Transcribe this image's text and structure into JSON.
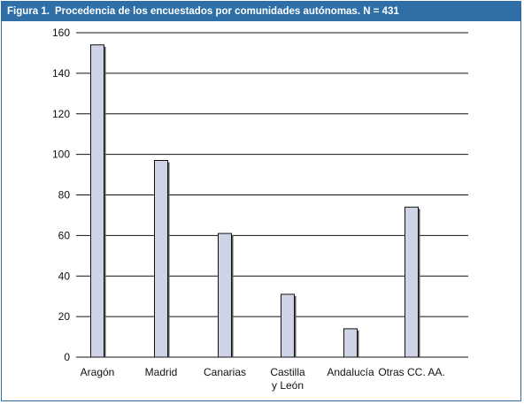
{
  "figure": {
    "label": "Figura 1.",
    "title": "Procedencia de los encuestados por comunidades autónomas. N = 431"
  },
  "colors": {
    "header_bg": "#2e6fa8",
    "bar_fill": "#cfd3e6",
    "bar_stroke": "#111111",
    "gridline": "#111111"
  },
  "chart_data": {
    "type": "bar",
    "title": "Procedencia de los encuestados por comunidades autónomas. N = 431",
    "categories": [
      [
        "Aragón"
      ],
      [
        "Madrid"
      ],
      [
        "Canarias"
      ],
      [
        "Castilla",
        "y León"
      ],
      [
        "Andalucía"
      ],
      [
        "Otras CC. AA."
      ]
    ],
    "values": [
      154,
      97,
      61,
      31,
      14,
      74
    ],
    "ylim": [
      0,
      160
    ],
    "yticks": [
      0,
      20,
      40,
      60,
      80,
      100,
      120,
      140,
      160
    ],
    "grid": true,
    "legend": "none"
  }
}
